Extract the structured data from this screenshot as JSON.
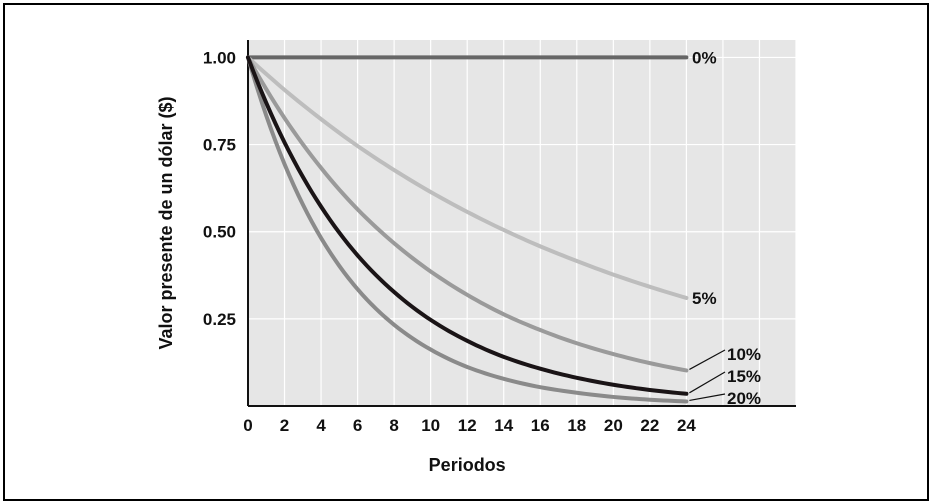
{
  "chart_data": {
    "type": "line",
    "title": "",
    "xlabel": "Periodos",
    "ylabel": "Valor presente de un dólar ($)",
    "xlim": [
      0,
      30
    ],
    "ylim": [
      0,
      1.05
    ],
    "x_ticks": [
      0,
      2,
      4,
      6,
      8,
      10,
      12,
      14,
      16,
      18,
      20,
      22,
      24
    ],
    "x_tick_labels": [
      "0",
      "2",
      "4",
      "6",
      "8",
      "10",
      "12",
      "14",
      "16",
      "18",
      "20",
      "22",
      "24"
    ],
    "y_ticks": [
      0.25,
      0.5,
      0.75,
      1.0
    ],
    "y_tick_labels": [
      "0.25",
      "0.50",
      "0.75",
      "1.00"
    ],
    "grid": true,
    "legend": "inline labels at right end of each curve",
    "x": [
      0,
      2,
      4,
      6,
      8,
      10,
      12,
      14,
      16,
      18,
      20,
      22,
      24
    ],
    "series": [
      {
        "name": "0%",
        "color": "#666666",
        "values": [
          1.0,
          1.0,
          1.0,
          1.0,
          1.0,
          1.0,
          1.0,
          1.0,
          1.0,
          1.0,
          1.0,
          1.0,
          1.0
        ]
      },
      {
        "name": "5%",
        "color": "#bdbdbd",
        "values": [
          1.0,
          0.907,
          0.823,
          0.746,
          0.677,
          0.614,
          0.557,
          0.505,
          0.458,
          0.416,
          0.377,
          0.342,
          0.31
        ]
      },
      {
        "name": "10%",
        "color": "#9a9a9a",
        "values": [
          1.0,
          0.826,
          0.683,
          0.564,
          0.467,
          0.386,
          0.319,
          0.263,
          0.218,
          0.18,
          0.149,
          0.123,
          0.102
        ]
      },
      {
        "name": "15%",
        "color": "#1a1416",
        "values": [
          1.0,
          0.756,
          0.572,
          0.432,
          0.327,
          0.247,
          0.187,
          0.141,
          0.107,
          0.081,
          0.061,
          0.046,
          0.035
        ]
      },
      {
        "name": "20%",
        "color": "#8a8a8a",
        "values": [
          1.0,
          0.694,
          0.482,
          0.335,
          0.233,
          0.162,
          0.112,
          0.078,
          0.054,
          0.038,
          0.026,
          0.018,
          0.013
        ]
      }
    ]
  }
}
